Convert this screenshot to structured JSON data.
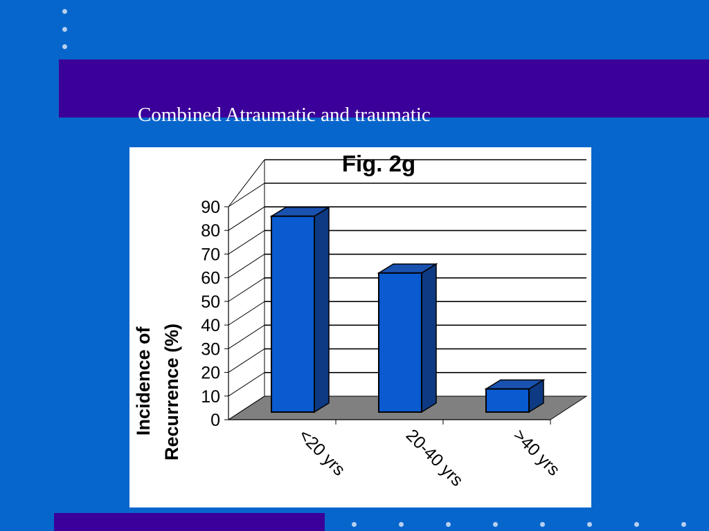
{
  "slide": {
    "subtitle": "Combined Atraumatic and traumatic"
  },
  "colors": {
    "background": "#0766cc",
    "band": "#3b0099",
    "bar_front": "#0a5ad0",
    "bar_side": "#0d3a82",
    "floor": "#808080"
  },
  "chart_data": {
    "type": "bar",
    "title": "Fig. 2g",
    "ylabel": [
      "Incidence of",
      "Recurrence (%)"
    ],
    "xlabel": "",
    "categories": [
      "<20 yrs",
      "20-40 yrs",
      ">40 yrs"
    ],
    "values": [
      86,
      62,
      13
    ],
    "ylim": [
      0,
      90
    ],
    "yticks": [
      0,
      10,
      20,
      30,
      40,
      50,
      60,
      70,
      80,
      90
    ],
    "grid": true,
    "three_d": true,
    "legend": "none"
  }
}
